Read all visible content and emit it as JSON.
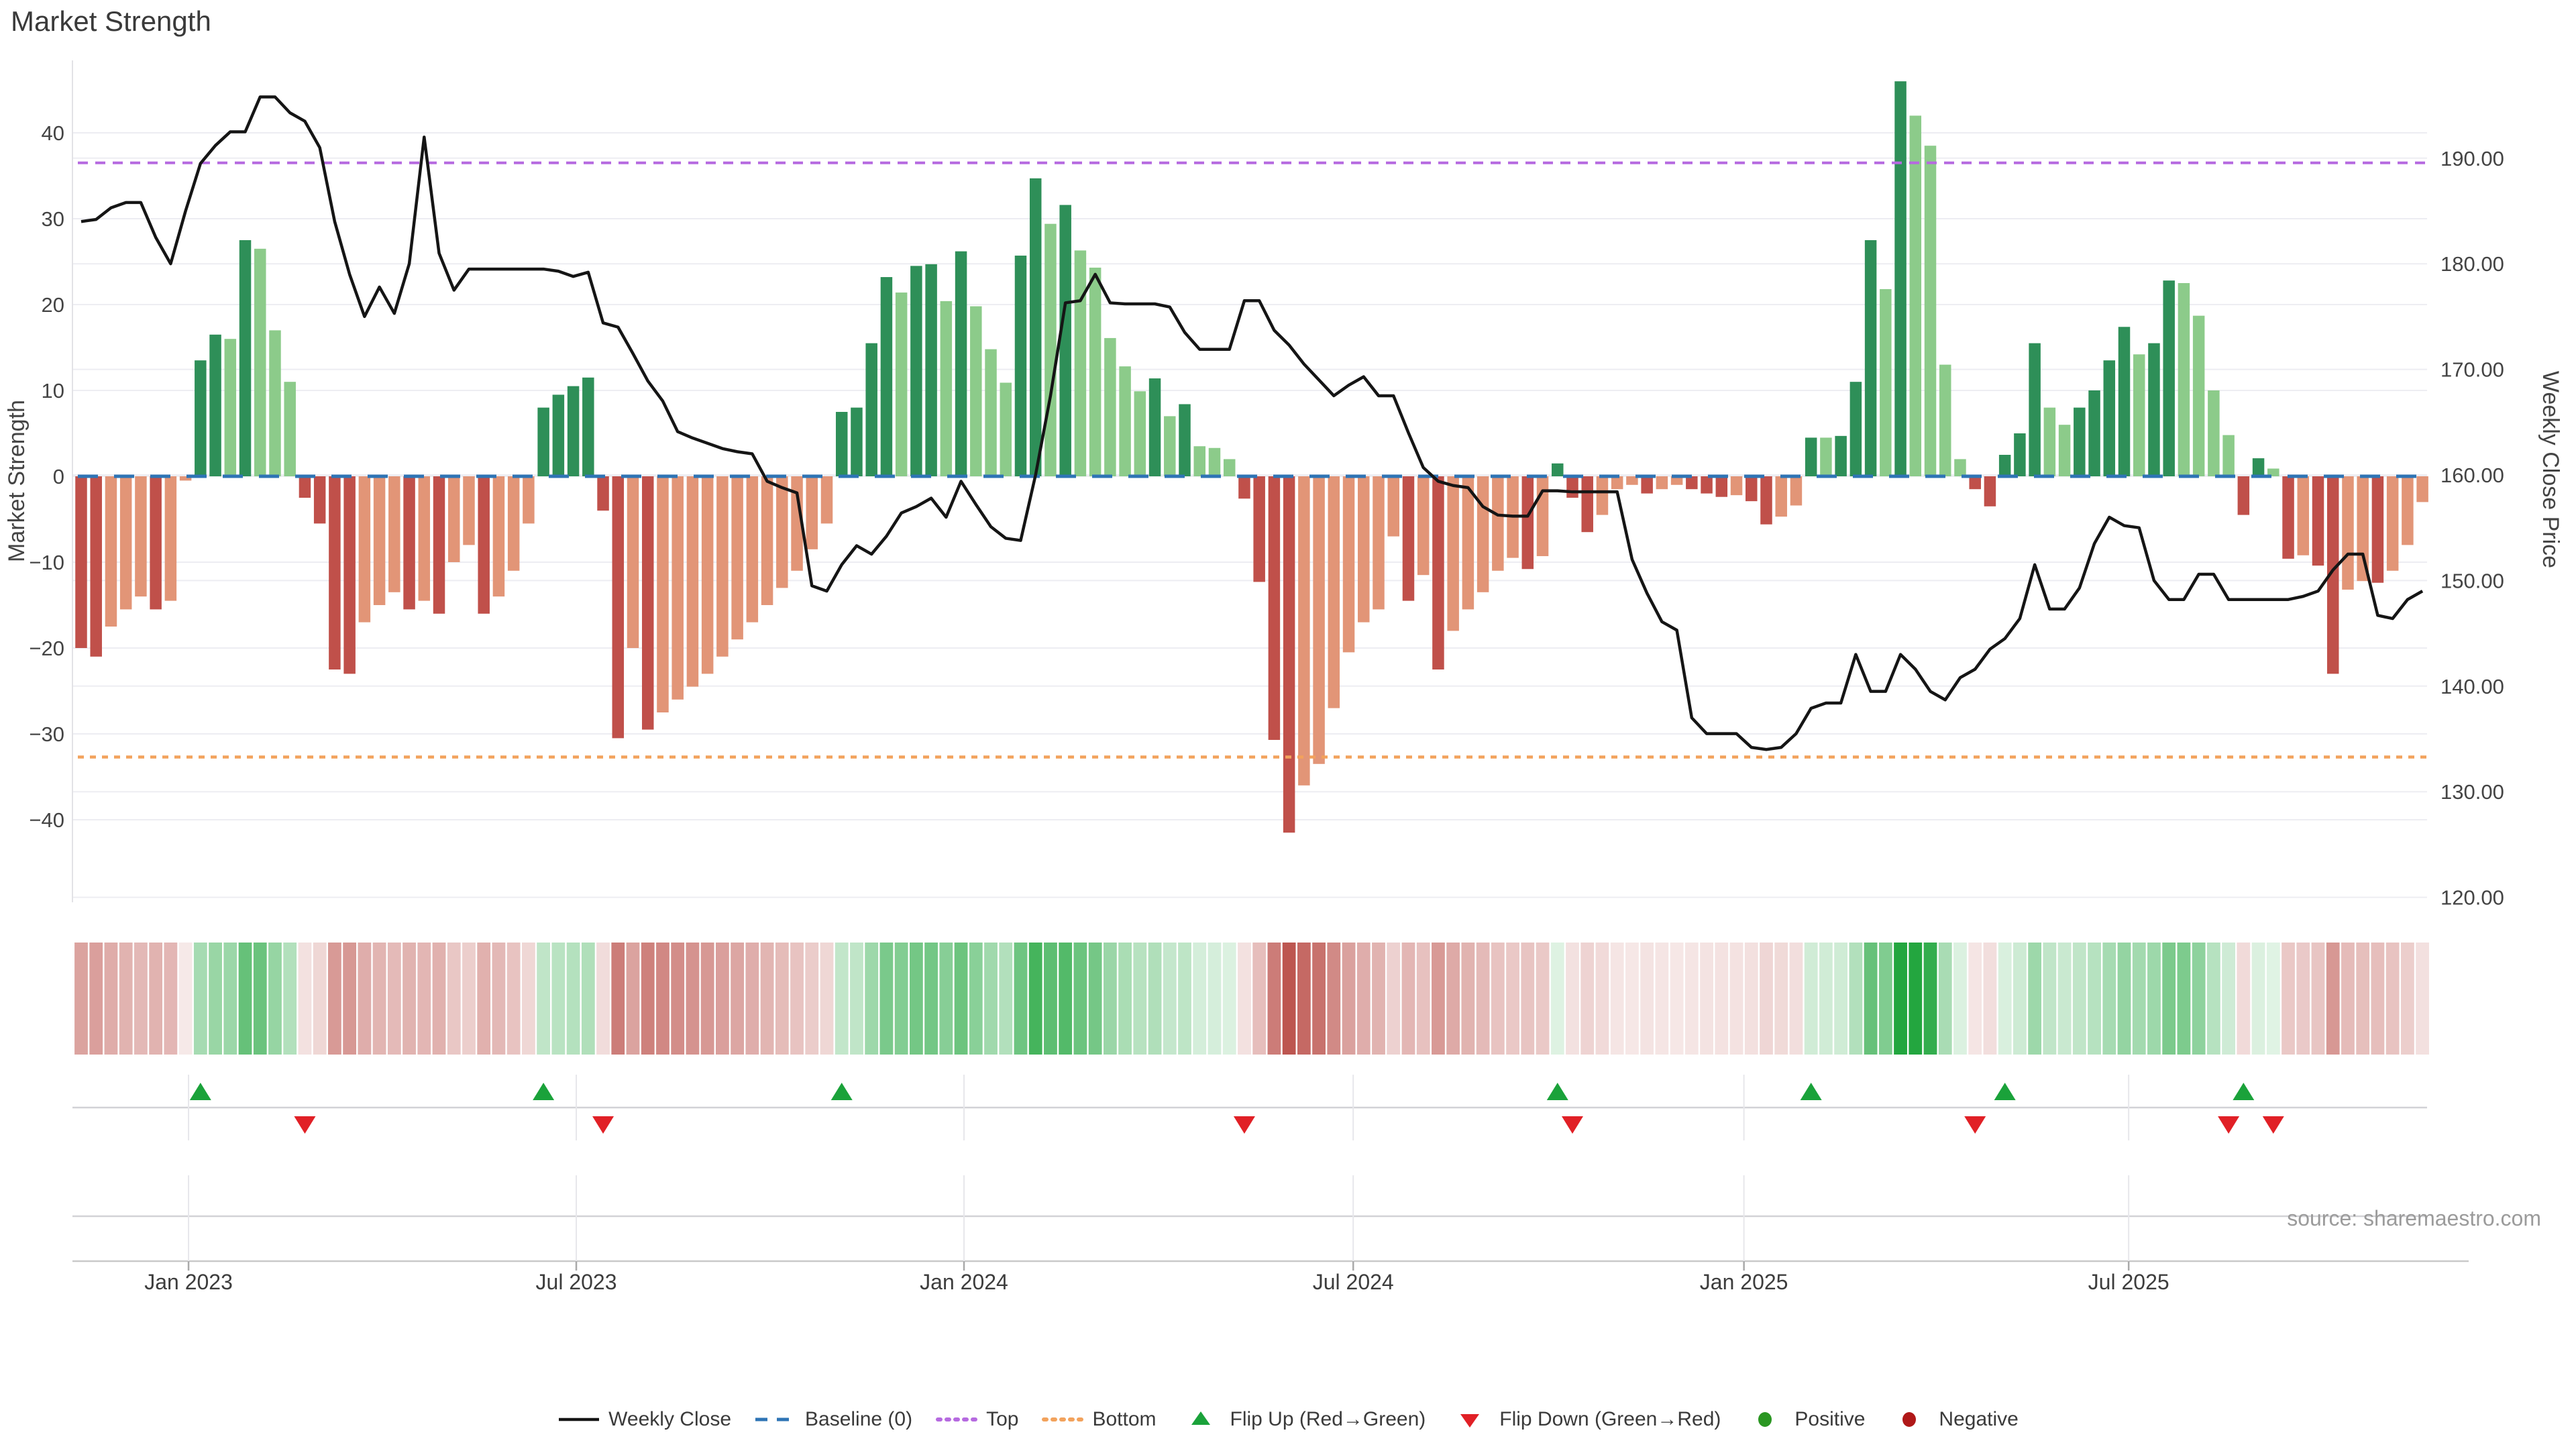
{
  "title": "Market Strength",
  "source": "source: sharemaestro.com",
  "axes": {
    "left": {
      "title": "Market Strength",
      "ticks": [
        {
          "v": 40,
          "label": "40"
        },
        {
          "v": 30,
          "label": "30"
        },
        {
          "v": 20,
          "label": "20"
        },
        {
          "v": 10,
          "label": "10"
        },
        {
          "v": 0,
          "label": "0"
        },
        {
          "v": -10,
          "label": "−10"
        },
        {
          "v": -20,
          "label": "−20"
        },
        {
          "v": -30,
          "label": "−30"
        },
        {
          "v": -40,
          "label": "−40"
        }
      ]
    },
    "right": {
      "title": "Weekly Close Price",
      "ticks": [
        {
          "v": 190,
          "label": "190.00"
        },
        {
          "v": 180,
          "label": "180.00"
        },
        {
          "v": 170,
          "label": "170.00"
        },
        {
          "v": 160,
          "label": "160.00"
        },
        {
          "v": 150,
          "label": "150.00"
        },
        {
          "v": 140,
          "label": "140.00"
        },
        {
          "v": 130,
          "label": "130.00"
        },
        {
          "v": 120,
          "label": "120.00"
        }
      ]
    },
    "x": {
      "ticks": [
        {
          "i": 7.2,
          "label": "Jan 2023"
        },
        {
          "i": 33.2,
          "label": "Jul 2023"
        },
        {
          "i": 59.2,
          "label": "Jan 2024"
        },
        {
          "i": 85.3,
          "label": "Jul 2024"
        },
        {
          "i": 111.5,
          "label": "Jan 2025"
        },
        {
          "i": 137.3,
          "label": "Jul 2025"
        }
      ]
    }
  },
  "chart_data": {
    "type": "bar+line",
    "x_unit": "week",
    "baseline": 0,
    "top_threshold": 36.5,
    "bottom_threshold": -32.7,
    "ylim_strength": [
      -49.5,
      48.4
    ],
    "ylim_price": [
      119.5,
      199.2
    ],
    "grid": true,
    "series": [
      {
        "name": "Market Strength",
        "type": "bar",
        "axis": "left",
        "values": [
          -20,
          -21,
          -17.5,
          -15.5,
          -14,
          -15.5,
          -14.5,
          -0.5,
          13.5,
          16.5,
          16,
          27.5,
          26.5,
          17,
          11,
          -2.5,
          -5.5,
          -22.5,
          -23,
          -17,
          -15,
          -13.5,
          -15.5,
          -14.5,
          -16,
          -10,
          -8,
          -16,
          -14,
          -11,
          -5.5,
          8,
          9.5,
          10.5,
          11.5,
          -4,
          -30.5,
          -20,
          -29.5,
          -27.5,
          -26,
          -24.5,
          -23,
          -21,
          -19,
          -17,
          -15,
          -13,
          -11,
          -8.5,
          -5.5,
          7.5,
          8,
          15.5,
          23.2,
          21.4,
          24.5,
          24.7,
          20.4,
          26.2,
          19.8,
          14.8,
          10.9,
          25.7,
          34.7,
          29.4,
          31.6,
          26.3,
          24.3,
          16.1,
          12.8,
          9.9,
          11.4,
          7,
          8.4,
          3.5,
          3.3,
          2,
          -2.6,
          -12.3,
          -30.7,
          -41.5,
          -36,
          -33.5,
          -27,
          -20.5,
          -17,
          -15.5,
          -7,
          -14.5,
          -11.5,
          -22.5,
          -18,
          -15.5,
          -13.5,
          -11,
          -9.5,
          -10.8,
          -9.3,
          1.5,
          -2.5,
          -6.5,
          -4.5,
          -1.5,
          -1,
          -2,
          -1.5,
          -1,
          -1.5,
          -2,
          -2.4,
          -2.2,
          -2.9,
          -5.6,
          -4.7,
          -3.4,
          4.5,
          4.5,
          4.7,
          11,
          27.5,
          21.8,
          46,
          42,
          38.5,
          13,
          2,
          -1.5,
          -3.5,
          2.5,
          5,
          15.5,
          8,
          6,
          8,
          10,
          13.5,
          17.4,
          14.2,
          15.5,
          22.8,
          22.5,
          18.7,
          10,
          4.8,
          -4.5,
          2.1,
          0.9,
          -9.6,
          -9.2,
          -10.4,
          -23,
          -13.2,
          -12.2,
          -12.4,
          -11,
          -8,
          -3
        ]
      },
      {
        "name": "Weekly Close",
        "type": "line",
        "axis": "right",
        "values": [
          184,
          184.2,
          185.3,
          185.8,
          185.8,
          182.5,
          180,
          185,
          189.5,
          191.2,
          192.5,
          192.5,
          195.8,
          195.8,
          194.3,
          193.5,
          191,
          184,
          179,
          175,
          177.8,
          175.3,
          180,
          192,
          181,
          177.5,
          179.5,
          179.5,
          179.5,
          179.5,
          179.5,
          179.5,
          179.3,
          178.8,
          179.2,
          174.4,
          174,
          171.5,
          168.9,
          167,
          164.1,
          163.5,
          163,
          162.5,
          162.2,
          162,
          159.4,
          158.8,
          158.3,
          149.5,
          149,
          151.5,
          153.3,
          152.5,
          154.2,
          156.4,
          157,
          157.8,
          156,
          159.4,
          157.2,
          155.1,
          154,
          153.8,
          160,
          167.5,
          176.3,
          176.5,
          179,
          176.3,
          176.2,
          176.2,
          176.2,
          175.9,
          173.5,
          171.9,
          171.9,
          171.9,
          176.5,
          176.5,
          173.7,
          172.3,
          170.5,
          169,
          167.5,
          168.5,
          169.3,
          167.5,
          167.5,
          164,
          160.7,
          159.4,
          159,
          158.8,
          157,
          156.2,
          156.1,
          156.1,
          158.5,
          158.5,
          158.4,
          158.4,
          158.4,
          158.4,
          152,
          148.8,
          146.1,
          145.3,
          137,
          135.5,
          135.5,
          135.5,
          134.2,
          134,
          134.2,
          135.5,
          137.9,
          138.4,
          138.4,
          143,
          139.5,
          139.5,
          143,
          141.6,
          139.5,
          138.7,
          140.8,
          141.6,
          143.5,
          144.5,
          146.4,
          151.5,
          147.3,
          147.3,
          149.3,
          153.5,
          156,
          155.2,
          155,
          150,
          148.2,
          148.2,
          150.6,
          150.6,
          148.2,
          148.2,
          148.2,
          148.2,
          148.2,
          148.5,
          149,
          151,
          152.5,
          152.5,
          146.7,
          146.4,
          148.2,
          149
        ]
      }
    ],
    "flip_up_indices": [
      8,
      31,
      51,
      99,
      116,
      129,
      145
    ],
    "flip_down_indices": [
      15,
      35,
      78,
      100,
      127,
      144,
      147
    ],
    "heatmap": {
      "desc": "one cell per week, red-green diverging, intensity = |strength|"
    }
  },
  "legend": {
    "items": [
      {
        "label": "Weekly Close",
        "symbol": "line",
        "color": "#151515"
      },
      {
        "label": "Baseline (0)",
        "symbol": "dash",
        "color": "#2e74b5"
      },
      {
        "label": "Top",
        "symbol": "dots",
        "color": "#b66ae0"
      },
      {
        "label": "Bottom",
        "symbol": "dots",
        "color": "#f2a25c"
      },
      {
        "label": "Flip Up (Red→Green)",
        "symbol": "triangle-up",
        "color": "#1aa23a"
      },
      {
        "label": "Flip Down (Green→Red)",
        "symbol": "triangle-down",
        "color": "#e12026"
      },
      {
        "label": "Positive",
        "symbol": "circle",
        "color": "#2a9622"
      },
      {
        "label": "Negative",
        "symbol": "circle",
        "color": "#b01818"
      }
    ]
  },
  "colors": {
    "bar_pos_strong": "#2e8f58",
    "bar_pos_weak": "#8ccb8a",
    "bar_neg_strong": "#c0504a",
    "bar_neg_weak": "#e29577",
    "line": "#151515",
    "baseline": "#2e74b5",
    "top": "#b66ae0",
    "bottom": "#f2a25c",
    "heat_pos": "#22a63e",
    "heat_neg": "#bc534d",
    "grid": "#ededf2",
    "axis_line": "#c9c9c9",
    "band_line": "#d2d2d6"
  }
}
